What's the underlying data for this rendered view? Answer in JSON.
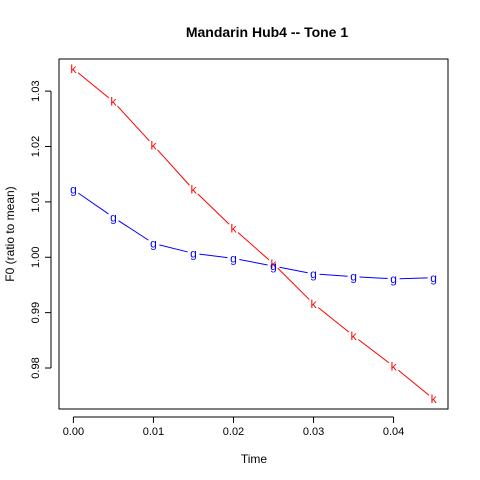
{
  "chart_data": {
    "type": "line",
    "title": "Mandarin Hub4 -- Tone 1",
    "xlabel": "Time",
    "ylabel": "F0 (ratio to mean)",
    "xlim": [
      -0.0018,
      0.0468
    ],
    "ylim": [
      0.9726,
      1.0358
    ],
    "x_ticks": [
      0.0,
      0.01,
      0.02,
      0.03,
      0.04
    ],
    "x_tick_labels": [
      "0.00",
      "0.01",
      "0.02",
      "0.03",
      "0.04"
    ],
    "y_ticks": [
      0.98,
      0.99,
      1.0,
      1.01,
      1.02,
      1.03
    ],
    "y_tick_labels": [
      "0.98",
      "0.99",
      "1.00",
      "1.01",
      "1.02",
      "1.03"
    ],
    "grid": false,
    "x": [
      0.0,
      0.005,
      0.01,
      0.015,
      0.02,
      0.025,
      0.03,
      0.035,
      0.04,
      0.045
    ],
    "series": [
      {
        "marker": "k",
        "color": "#ff0000",
        "values": [
          1.034,
          1.0281,
          1.0202,
          1.0122,
          1.0052,
          0.9988,
          0.9916,
          0.9858,
          0.9803,
          0.9744
        ]
      },
      {
        "marker": "g",
        "color": "#0000ff",
        "values": [
          1.0122,
          1.0072,
          1.0025,
          1.0007,
          0.9998,
          0.9984,
          0.997,
          0.9965,
          0.9961,
          0.9963
        ]
      }
    ]
  }
}
